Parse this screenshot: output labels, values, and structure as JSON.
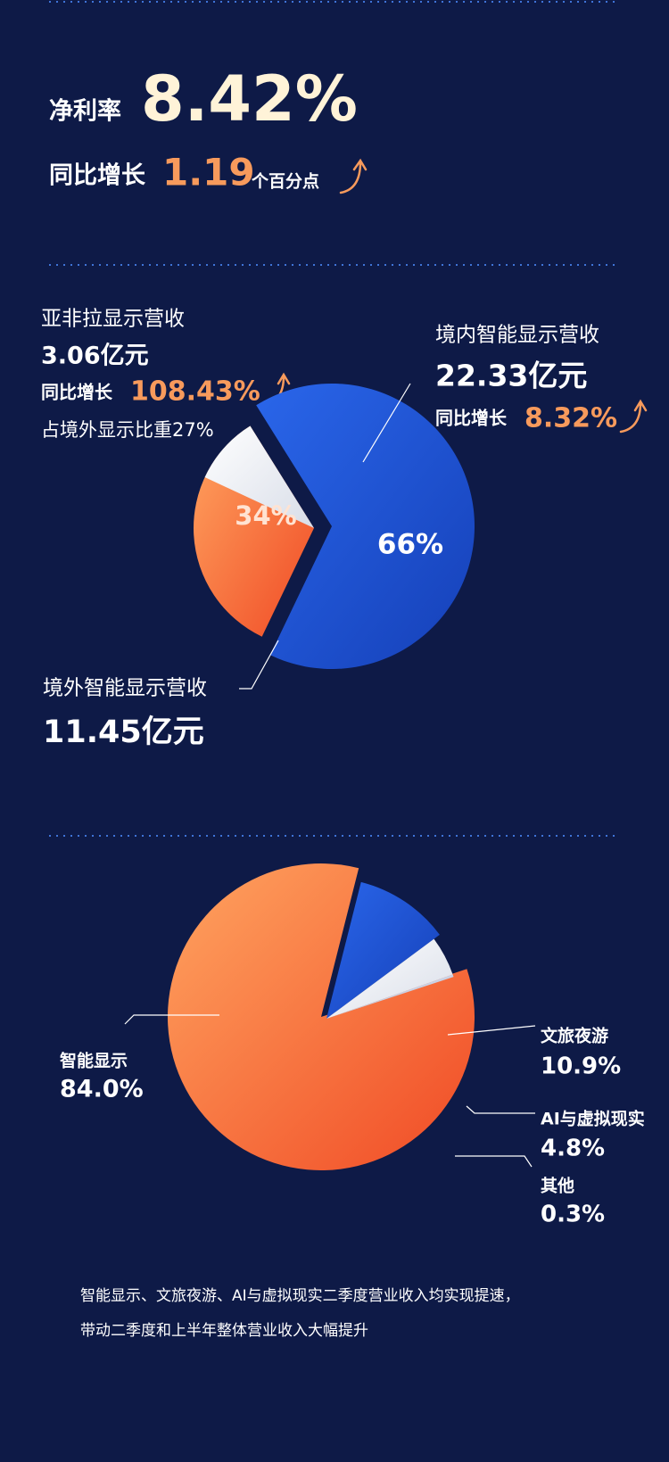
{
  "header": {
    "label": "净利率",
    "value": "8.42%",
    "growth_label": "同比增长",
    "growth_value": "1.19",
    "growth_unit": "个百分点"
  },
  "chart_data": [
    {
      "type": "pie",
      "categories": [
        "境内智能显示营收",
        "境外智能显示营收"
      ],
      "values": [
        66,
        34
      ],
      "value_labels": [
        "66%",
        "34%"
      ],
      "colors": [
        "#1f56d8",
        "#ff8d4f"
      ],
      "details": [
        {
          "amount": "22.33亿元",
          "growth_label": "同比增长",
          "growth": "8.32%"
        },
        {
          "amount": "11.45亿元"
        }
      ],
      "sub_segment": {
        "name": "亚非拉显示营收",
        "amount": "3.06亿元",
        "growth_label": "同比增长",
        "growth": "108.43%",
        "share": {
          "value": 27,
          "label": "占境外显示比重27%"
        },
        "color": "#ffffff"
      }
    },
    {
      "type": "pie",
      "categories": [
        "智能显示",
        "文旅夜游",
        "AI与虚拟现实",
        "其他"
      ],
      "values": [
        84.0,
        10.9,
        4.8,
        0.3
      ],
      "value_labels": [
        "84.0%",
        "10.9%",
        "4.8%",
        "0.3%"
      ],
      "colors": [
        "#ff8d4f",
        "#1f56d8",
        "#ffffff",
        "#c9d2e6"
      ]
    }
  ],
  "footer": [
    "智能显示、文旅夜游、AI与虚拟现实二季度营业收入均实现提速，",
    "带动二季度和上半年整体营业收入大幅提升"
  ]
}
